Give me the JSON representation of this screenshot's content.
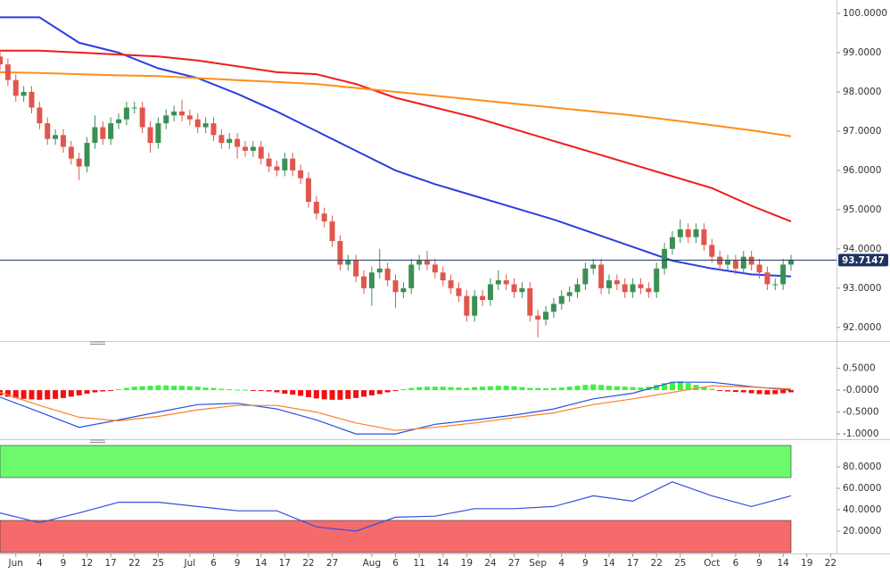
{
  "chart_data": [
    {
      "type": "candlestick",
      "xlim": [
        0,
        105.75
      ],
      "xticks": [
        {
          "value": 2,
          "label": "Jun"
        },
        {
          "value": 5,
          "label": "4"
        },
        {
          "value": 8,
          "label": "9"
        },
        {
          "value": 11,
          "label": "12"
        },
        {
          "value": 14,
          "label": "17"
        },
        {
          "value": 17,
          "label": "22"
        },
        {
          "value": 20,
          "label": "25"
        },
        {
          "value": 24,
          "label": "Jul"
        },
        {
          "value": 27,
          "label": "6"
        },
        {
          "value": 30,
          "label": "9"
        },
        {
          "value": 33,
          "label": "14"
        },
        {
          "value": 36,
          "label": "17"
        },
        {
          "value": 39,
          "label": "22"
        },
        {
          "value": 42,
          "label": "27"
        },
        {
          "value": 47,
          "label": "Aug"
        },
        {
          "value": 50,
          "label": "6"
        },
        {
          "value": 53,
          "label": "11"
        },
        {
          "value": 56,
          "label": "14"
        },
        {
          "value": 59,
          "label": "19"
        },
        {
          "value": 62,
          "label": "24"
        },
        {
          "value": 65,
          "label": "27"
        },
        {
          "value": 68,
          "label": "Sep"
        },
        {
          "value": 71,
          "label": "4"
        },
        {
          "value": 74,
          "label": "9"
        },
        {
          "value": 77,
          "label": "14"
        },
        {
          "value": 80,
          "label": "17"
        },
        {
          "value": 83,
          "label": "22"
        },
        {
          "value": 86,
          "label": "25"
        },
        {
          "value": 90,
          "label": "Oct"
        },
        {
          "value": 93,
          "label": "6"
        },
        {
          "value": 96,
          "label": "9"
        },
        {
          "value": 99,
          "label": "14"
        },
        {
          "value": 102,
          "label": "19"
        },
        {
          "value": 105,
          "label": "22"
        }
      ],
      "ylim": [
        91.7,
        100.34
      ],
      "yticks": [
        {
          "value": 92,
          "label": "92.0000"
        },
        {
          "value": 93,
          "label": "93.0000"
        },
        {
          "value": 94,
          "label": "94.0000"
        },
        {
          "value": 95,
          "label": "95.0000"
        },
        {
          "value": 96,
          "label": "96.0000"
        },
        {
          "value": 97,
          "label": "97.0000"
        },
        {
          "value": 98,
          "label": "98.0000"
        },
        {
          "value": 99,
          "label": "99.0000"
        },
        {
          "value": 100,
          "label": "100.0000"
        }
      ],
      "up_color": "#3b8f55",
      "down_color": "#e0564c",
      "open": [
        98.9,
        98.7,
        98.3,
        97.9,
        98.0,
        97.6,
        97.2,
        96.8,
        96.9,
        96.6,
        96.3,
        96.1,
        96.7,
        97.1,
        96.8,
        97.2,
        97.3,
        97.6,
        97.6,
        97.1,
        96.7,
        97.2,
        97.4,
        97.5,
        97.4,
        97.3,
        97.1,
        97.2,
        96.9,
        96.7,
        96.8,
        96.6,
        96.5,
        96.6,
        96.3,
        96.1,
        96.0,
        96.3,
        96.0,
        95.8,
        95.2,
        94.9,
        94.7,
        94.2,
        93.6,
        93.7,
        93.3,
        93.0,
        93.4,
        93.5,
        93.2,
        92.9,
        93.0,
        93.6,
        93.7,
        93.6,
        93.4,
        93.2,
        93.0,
        92.8,
        92.3,
        92.8,
        92.7,
        93.1,
        93.2,
        93.1,
        92.9,
        93.0,
        92.3,
        92.2,
        92.4,
        92.6,
        92.8,
        92.9,
        93.1,
        93.5,
        93.6,
        93.0,
        93.2,
        93.1,
        92.9,
        93.1,
        93.0,
        92.9,
        93.5,
        94.0,
        94.3,
        94.5,
        94.3,
        94.5,
        94.1,
        93.8,
        93.6,
        93.7,
        93.5,
        93.8,
        93.6,
        93.4,
        93.1,
        93.1,
        93.6
      ],
      "high": [
        99.05,
        98.85,
        98.45,
        98.15,
        98.15,
        97.75,
        97.35,
        97.05,
        97.05,
        96.75,
        96.45,
        96.85,
        97.4,
        97.25,
        97.35,
        97.45,
        97.75,
        97.75,
        97.75,
        97.25,
        97.35,
        97.55,
        97.65,
        97.8,
        97.55,
        97.45,
        97.35,
        97.35,
        97.05,
        96.95,
        96.95,
        96.75,
        96.75,
        96.75,
        96.45,
        96.25,
        96.45,
        96.45,
        96.15,
        95.95,
        95.35,
        95.05,
        94.85,
        94.35,
        93.85,
        93.85,
        93.45,
        93.55,
        94.0,
        93.65,
        93.35,
        93.15,
        93.75,
        93.85,
        93.95,
        93.75,
        93.55,
        93.35,
        93.15,
        92.95,
        92.95,
        92.95,
        93.25,
        93.45,
        93.35,
        93.25,
        93.15,
        93.15,
        92.45,
        92.55,
        92.75,
        92.95,
        93.05,
        93.25,
        93.65,
        93.75,
        93.75,
        93.35,
        93.35,
        93.25,
        93.25,
        93.25,
        93.15,
        93.65,
        94.15,
        94.45,
        94.75,
        94.65,
        94.65,
        94.65,
        94.25,
        93.95,
        93.85,
        93.85,
        93.95,
        93.95,
        93.75,
        93.55,
        93.25,
        93.75,
        93.85
      ],
      "low": [
        98.55,
        98.15,
        97.75,
        97.75,
        97.45,
        97.05,
        96.65,
        96.65,
        96.45,
        96.15,
        95.75,
        95.95,
        96.55,
        96.65,
        96.65,
        97.05,
        97.15,
        97.45,
        96.95,
        96.45,
        96.55,
        97.05,
        97.25,
        97.25,
        97.15,
        96.95,
        96.95,
        96.75,
        96.55,
        96.55,
        96.3,
        96.35,
        96.35,
        96.15,
        95.95,
        95.85,
        95.85,
        95.85,
        95.65,
        95.05,
        94.75,
        94.55,
        94.05,
        93.45,
        93.45,
        93.15,
        92.85,
        92.55,
        93.25,
        93.05,
        92.5,
        92.75,
        92.85,
        93.45,
        93.45,
        93.25,
        93.05,
        92.85,
        92.65,
        92.15,
        92.15,
        92.55,
        92.55,
        92.95,
        92.95,
        92.75,
        92.75,
        92.15,
        91.75,
        92.05,
        92.25,
        92.45,
        92.65,
        92.75,
        92.95,
        93.35,
        92.85,
        92.85,
        92.95,
        92.75,
        92.75,
        92.85,
        92.75,
        92.75,
        93.35,
        93.85,
        94.15,
        94.15,
        94.15,
        93.95,
        93.65,
        93.45,
        93.45,
        93.35,
        93.35,
        93.45,
        93.25,
        92.95,
        92.95,
        92.95,
        93.45
      ],
      "close": [
        98.7,
        98.3,
        97.9,
        98.0,
        97.6,
        97.2,
        96.8,
        96.9,
        96.6,
        96.3,
        96.1,
        96.7,
        97.1,
        96.8,
        97.2,
        97.3,
        97.6,
        97.6,
        97.1,
        96.7,
        97.2,
        97.4,
        97.5,
        97.4,
        97.3,
        97.1,
        97.2,
        96.9,
        96.7,
        96.8,
        96.6,
        96.5,
        96.6,
        96.3,
        96.1,
        96.0,
        96.3,
        96.0,
        95.8,
        95.2,
        94.9,
        94.7,
        94.2,
        93.6,
        93.7,
        93.3,
        93.0,
        93.4,
        93.5,
        93.2,
        92.9,
        93.0,
        93.6,
        93.7,
        93.6,
        93.4,
        93.2,
        93.0,
        92.8,
        92.3,
        92.8,
        92.7,
        93.1,
        93.2,
        93.1,
        92.9,
        93.0,
        92.3,
        92.2,
        92.4,
        92.6,
        92.8,
        92.9,
        93.1,
        93.5,
        93.6,
        93.0,
        93.2,
        93.1,
        92.9,
        93.1,
        93.0,
        92.9,
        93.5,
        94.0,
        94.3,
        94.5,
        94.3,
        94.5,
        94.1,
        93.8,
        93.6,
        93.7,
        93.5,
        93.8,
        93.6,
        93.4,
        93.1,
        93.1,
        93.6,
        93.7147
      ],
      "series": [
        {
          "color": "#2a3fe0",
          "x": [
            0,
            5,
            10,
            15,
            20,
            25,
            30,
            35,
            40,
            45,
            50,
            55,
            60,
            65,
            70,
            75,
            80,
            85,
            90,
            95,
            100
          ],
          "values": [
            99.9,
            99.9,
            99.25,
            99.0,
            98.6,
            98.35,
            97.95,
            97.5,
            97.0,
            96.5,
            96.0,
            95.65,
            95.35,
            95.05,
            94.75,
            94.4,
            94.05,
            93.7,
            93.5,
            93.35,
            93.3
          ]
        },
        {
          "color": "#ee1c1c",
          "x": [
            0,
            5,
            10,
            15,
            20,
            25,
            30,
            35,
            40,
            45,
            50,
            55,
            60,
            65,
            70,
            75,
            80,
            85,
            90,
            95,
            100
          ],
          "values": [
            99.05,
            99.05,
            99.0,
            98.95,
            98.9,
            98.8,
            98.65,
            98.5,
            98.45,
            98.2,
            97.85,
            97.6,
            97.35,
            97.05,
            96.75,
            96.45,
            96.15,
            95.85,
            95.55,
            95.1,
            94.7
          ]
        },
        {
          "color": "#ff8c1a",
          "x": [
            0,
            5,
            10,
            15,
            20,
            25,
            30,
            35,
            40,
            45,
            50,
            55,
            60,
            65,
            70,
            75,
            80,
            85,
            90,
            95,
            100
          ],
          "values": [
            98.5,
            98.48,
            98.45,
            98.42,
            98.4,
            98.35,
            98.3,
            98.25,
            98.2,
            98.1,
            98.0,
            97.9,
            97.8,
            97.7,
            97.6,
            97.5,
            97.4,
            97.28,
            97.15,
            97.02,
            96.87
          ]
        }
      ],
      "last_price": 93.7147,
      "last_price_color": "#1d3461"
    },
    {
      "type": "macd",
      "ylim": [
        -1.08,
        1.0
      ],
      "yticks": [
        {
          "value": 0.5,
          "label": "0.5000"
        },
        {
          "value": 0,
          "label": "-0.0000"
        },
        {
          "value": -0.5,
          "label": "-0.5000"
        },
        {
          "value": -1,
          "label": "-1.0000"
        }
      ],
      "histogram": [
        -0.12,
        -0.15,
        -0.18,
        -0.2,
        -0.21,
        -0.22,
        -0.21,
        -0.2,
        -0.18,
        -0.15,
        -0.12,
        -0.08,
        -0.05,
        -0.03,
        -0.01,
        0.02,
        0.05,
        0.08,
        0.09,
        0.1,
        0.11,
        0.11,
        0.1,
        0.1,
        0.09,
        0.08,
        0.06,
        0.05,
        0.03,
        0.02,
        0.01,
        0.01,
        -0.01,
        -0.02,
        -0.03,
        -0.05,
        -0.08,
        -0.1,
        -0.13,
        -0.16,
        -0.19,
        -0.21,
        -0.22,
        -0.22,
        -0.2,
        -0.18,
        -0.15,
        -0.12,
        -0.09,
        -0.05,
        -0.02,
        0.02,
        0.05,
        0.07,
        0.08,
        0.08,
        0.08,
        0.07,
        0.06,
        0.05,
        0.07,
        0.08,
        0.09,
        0.1,
        0.1,
        0.09,
        0.07,
        0.05,
        0.05,
        0.04,
        0.05,
        0.06,
        0.08,
        0.1,
        0.12,
        0.13,
        0.12,
        0.1,
        0.09,
        0.08,
        0.07,
        0.06,
        0.08,
        0.12,
        0.16,
        0.19,
        0.2,
        0.16,
        0.12,
        0.07,
        0.03,
        -0.01,
        -0.03,
        -0.04,
        -0.05,
        -0.07,
        -0.09,
        -0.1,
        -0.09,
        -0.07,
        -0.05
      ],
      "up_color": "#3ef23e",
      "down_color": "#f01010",
      "series": [
        {
          "color": "#2a50e0",
          "x": [
            0,
            5,
            10,
            15,
            20,
            25,
            30,
            35,
            40,
            45,
            50,
            55,
            60,
            65,
            70,
            75,
            80,
            85,
            90,
            95,
            100
          ],
          "values": [
            -0.16,
            -0.5,
            -0.85,
            -0.68,
            -0.5,
            -0.33,
            -0.3,
            -0.43,
            -0.68,
            -1.0,
            -1.0,
            -0.78,
            -0.68,
            -0.57,
            -0.43,
            -0.2,
            -0.07,
            0.18,
            0.18,
            0.08,
            0.0
          ]
        },
        {
          "color": "#ff7f27",
          "x": [
            0,
            5,
            10,
            15,
            20,
            25,
            30,
            35,
            40,
            45,
            50,
            55,
            60,
            65,
            70,
            75,
            80,
            85,
            90,
            95,
            100
          ],
          "values": [
            -0.05,
            -0.35,
            -0.62,
            -0.7,
            -0.6,
            -0.45,
            -0.35,
            -0.35,
            -0.5,
            -0.75,
            -0.92,
            -0.85,
            -0.75,
            -0.63,
            -0.52,
            -0.33,
            -0.2,
            -0.05,
            0.1,
            0.07,
            0.03
          ]
        }
      ]
    },
    {
      "type": "rsi",
      "ylim": [
        0,
        100
      ],
      "yticks": [
        {
          "value": 80,
          "label": "80.0000"
        },
        {
          "value": 60,
          "label": "60.0000"
        },
        {
          "value": 40,
          "label": "40.0000"
        },
        {
          "value": 20,
          "label": "20.0000"
        }
      ],
      "bands": [
        {
          "from": 70,
          "to": 100,
          "color": "#6cfa6c"
        },
        {
          "from": 0,
          "to": 30,
          "color": "#f56b6b"
        }
      ],
      "series": [
        {
          "color": "#3350e0",
          "x": [
            0,
            5,
            10,
            15,
            20,
            25,
            30,
            35,
            40,
            45,
            50,
            55,
            60,
            65,
            70,
            75,
            80,
            85,
            90,
            95,
            100
          ],
          "values": [
            37,
            28,
            37,
            47,
            47,
            43,
            39,
            39,
            24,
            20,
            33,
            34,
            41,
            41,
            43,
            53,
            48,
            66,
            53,
            43,
            53
          ]
        }
      ]
    }
  ]
}
